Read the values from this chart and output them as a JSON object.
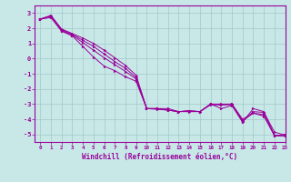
{
  "xlabel": "Windchill (Refroidissement éolien,°C)",
  "xlim": [
    -0.5,
    23
  ],
  "ylim": [
    -5.5,
    3.5
  ],
  "yticks": [
    3,
    2,
    1,
    0,
    -1,
    -2,
    -3,
    -4,
    -5
  ],
  "xticks": [
    0,
    1,
    2,
    3,
    4,
    5,
    6,
    7,
    8,
    9,
    10,
    11,
    12,
    13,
    14,
    15,
    16,
    17,
    18,
    19,
    20,
    21,
    22,
    23
  ],
  "bg_color": "#c8e8e8",
  "line_color": "#990099",
  "grid_color": "#a0c8c8",
  "lines": [
    [
      2.6,
      2.7,
      1.8,
      1.5,
      0.8,
      0.1,
      -0.5,
      -0.8,
      -1.2,
      -1.5,
      -3.3,
      -3.3,
      -3.4,
      -3.5,
      -3.5,
      -3.5,
      -3.0,
      -3.3,
      -3.1,
      -4.2,
      -3.3,
      -3.5,
      -5.1,
      -5.0
    ],
    [
      2.6,
      2.8,
      1.85,
      1.55,
      1.05,
      0.55,
      0.05,
      -0.4,
      -0.85,
      -1.35,
      -3.3,
      -3.35,
      -3.4,
      -3.5,
      -3.45,
      -3.5,
      -3.05,
      -3.05,
      -3.05,
      -4.15,
      -3.5,
      -3.55,
      -4.85,
      -5.05
    ],
    [
      2.6,
      2.8,
      1.9,
      1.6,
      1.2,
      0.8,
      0.3,
      -0.2,
      -0.65,
      -1.25,
      -3.3,
      -3.3,
      -3.4,
      -3.5,
      -3.45,
      -3.5,
      -3.0,
      -3.05,
      -3.0,
      -4.1,
      -3.6,
      -3.7,
      -5.05,
      -5.1
    ],
    [
      2.6,
      2.85,
      1.95,
      1.65,
      1.35,
      1.0,
      0.55,
      0.05,
      -0.45,
      -1.1,
      -3.3,
      -3.3,
      -3.3,
      -3.5,
      -3.45,
      -3.5,
      -3.0,
      -3.0,
      -3.0,
      -4.0,
      -3.6,
      -3.8,
      -5.1,
      -5.1
    ]
  ]
}
